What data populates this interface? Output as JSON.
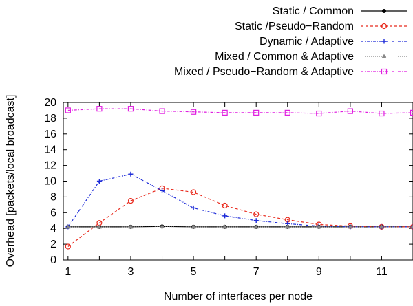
{
  "chart_data": {
    "type": "line",
    "title": "",
    "xlabel": "Number of interfaces per node",
    "ylabel": "Overhead [packets/local broadcast]",
    "xlim": [
      0.85,
      12
    ],
    "ylim": [
      0,
      20
    ],
    "xticks": [
      1,
      3,
      5,
      7,
      9,
      11
    ],
    "yticks": [
      0,
      2,
      4,
      6,
      8,
      10,
      12,
      14,
      16,
      18,
      20
    ],
    "grid": false,
    "legend_position": "top-right, outside plot",
    "series": [
      {
        "name": "Static / Common",
        "color": "#000000",
        "marker": "filled-circle",
        "dash": "solid",
        "x": [
          1,
          2,
          3,
          4,
          5,
          6,
          7,
          8,
          9,
          10,
          11,
          12
        ],
        "y": [
          4.2,
          4.2,
          4.2,
          4.25,
          4.2,
          4.2,
          4.2,
          4.2,
          4.2,
          4.2,
          4.2,
          4.2
        ]
      },
      {
        "name": "Static /Pseudo−Random",
        "color": "#e8291c",
        "marker": "open-circle",
        "dash": "dashed",
        "x": [
          1,
          2,
          3,
          4,
          5,
          6,
          7,
          8,
          9,
          10,
          11,
          12
        ],
        "y": [
          1.7,
          4.7,
          7.5,
          9.1,
          8.6,
          6.9,
          5.8,
          5.1,
          4.5,
          4.3,
          4.2,
          4.2
        ]
      },
      {
        "name": "Dynamic / Adaptive",
        "color": "#1d2bd8",
        "marker": "plus",
        "dash": "dash-dot",
        "x": [
          1,
          2,
          3,
          4,
          5,
          6,
          7,
          8,
          9,
          10,
          11,
          12
        ],
        "y": [
          4.2,
          10.0,
          10.9,
          8.8,
          6.6,
          5.6,
          5.0,
          4.6,
          4.3,
          4.2,
          4.2,
          4.2
        ]
      },
      {
        "name": "Mixed / Common & Adaptive",
        "color": "#888888",
        "marker": "filled-triangle",
        "dash": "dotted",
        "x": [
          1,
          2,
          3,
          4,
          5,
          6,
          7,
          8,
          9,
          10,
          11,
          12
        ],
        "y": [
          4.2,
          4.2,
          4.2,
          4.25,
          4.2,
          4.2,
          4.2,
          4.2,
          4.2,
          4.2,
          4.2,
          4.2
        ]
      },
      {
        "name": "Mixed / Pseudo−Random & Adaptive",
        "color": "#e01ee0",
        "marker": "open-square",
        "dash": "dash-dot",
        "x": [
          1,
          2,
          3,
          4,
          5,
          6,
          7,
          8,
          9,
          10,
          11,
          12
        ],
        "y": [
          19.0,
          19.2,
          19.2,
          18.9,
          18.8,
          18.7,
          18.7,
          18.7,
          18.6,
          18.9,
          18.6,
          18.7
        ]
      }
    ]
  }
}
